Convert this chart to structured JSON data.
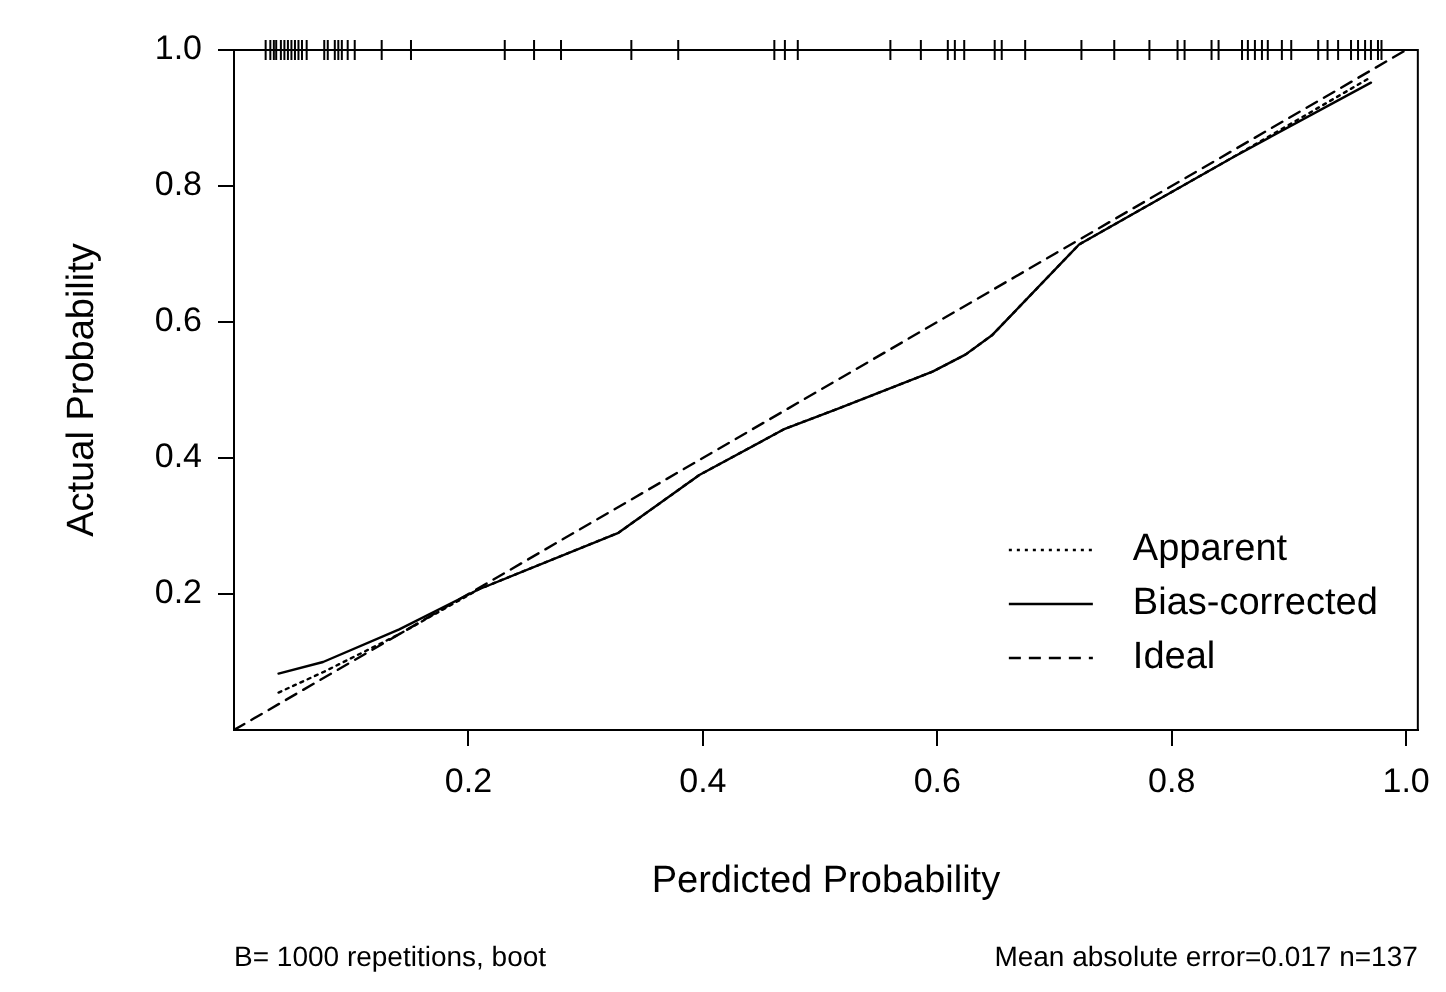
{
  "chart_data": {
    "type": "line",
    "xlabel": "Perdicted Probability",
    "ylabel": "Actual Probability",
    "xlim": [
      0,
      1.01
    ],
    "ylim": [
      0,
      1
    ],
    "xticks": [
      0.2,
      0.4,
      0.6,
      0.8,
      {
        "value": 1,
        "label": "1.0"
      }
    ],
    "yticks": [
      0.2,
      0.4,
      0.6,
      0.8,
      {
        "value": 1,
        "label": "1.0"
      }
    ],
    "grid": false,
    "legend": "bottom right",
    "annotations": [
      "B= 1000 repetitions, boot",
      "Mean absolute error=0.017 n=137"
    ],
    "series": [
      {
        "name": "Apparent",
        "color": "#000000",
        "line_style": "dotted",
        "marker": "none",
        "x": [
          0.038,
          0.076,
          0.14,
          0.209,
          0.328,
          0.397,
          0.47,
          0.516,
          0.596,
          0.624,
          0.647,
          0.721,
          0.852,
          0.97
        ],
        "values": [
          0.055,
          0.085,
          0.14,
          0.207,
          0.29,
          0.375,
          0.443,
          0.473,
          0.527,
          0.552,
          0.581,
          0.714,
          0.842,
          0.96
        ]
      },
      {
        "name": "Bias-corrected",
        "color": "#000000",
        "line_style": "solid",
        "marker": "none",
        "x": [
          0.038,
          0.076,
          0.141,
          0.209,
          0.328,
          0.397,
          0.47,
          0.516,
          0.596,
          0.624,
          0.647,
          0.721,
          0.852,
          0.97
        ],
        "values": [
          0.083,
          0.1,
          0.148,
          0.207,
          0.29,
          0.375,
          0.443,
          0.473,
          0.527,
          0.552,
          0.581,
          0.714,
          0.842,
          0.952
        ]
      },
      {
        "name": "Ideal",
        "color": "#000000",
        "line_style": "dashed",
        "marker": "none",
        "x": [
          0,
          1
        ],
        "values": [
          0,
          1
        ]
      },
      {
        "type": "scatter",
        "color": "#000000",
        "marker": "cross",
        "x": [
          0.027,
          0.031,
          0.034,
          0.036,
          0.04,
          0.043,
          0.046,
          0.049,
          0.052,
          0.055,
          0.058,
          0.062,
          0.077,
          0.08,
          0.086,
          0.089,
          0.092,
          0.097,
          0.103,
          0.126,
          0.151,
          0.231,
          0.256,
          0.279,
          0.339,
          0.379,
          0.461,
          0.47,
          0.481,
          0.56,
          0.586,
          0.609,
          0.615,
          0.623,
          0.649,
          0.655,
          0.675,
          0.723,
          0.751,
          0.781,
          0.805,
          0.811,
          0.834,
          0.84,
          0.86,
          0.865,
          0.871,
          0.877,
          0.882,
          0.894,
          0.902,
          0.925,
          0.933,
          0.942,
          0.953,
          0.959,
          0.965,
          0.97,
          0.976,
          0.979
        ],
        "values": [
          1,
          1,
          1,
          1,
          1,
          1,
          1,
          1,
          1,
          1,
          1,
          1,
          1,
          1,
          1,
          1,
          1,
          1,
          1,
          1,
          1,
          1,
          1,
          1,
          1,
          1,
          1,
          1,
          1,
          1,
          1,
          1,
          1,
          1,
          1,
          1,
          1,
          1,
          1,
          1,
          1,
          1,
          1,
          1,
          1,
          1,
          1,
          1,
          1,
          1,
          1,
          1,
          1,
          1,
          1,
          1,
          1,
          1,
          1,
          1
        ]
      }
    ]
  }
}
